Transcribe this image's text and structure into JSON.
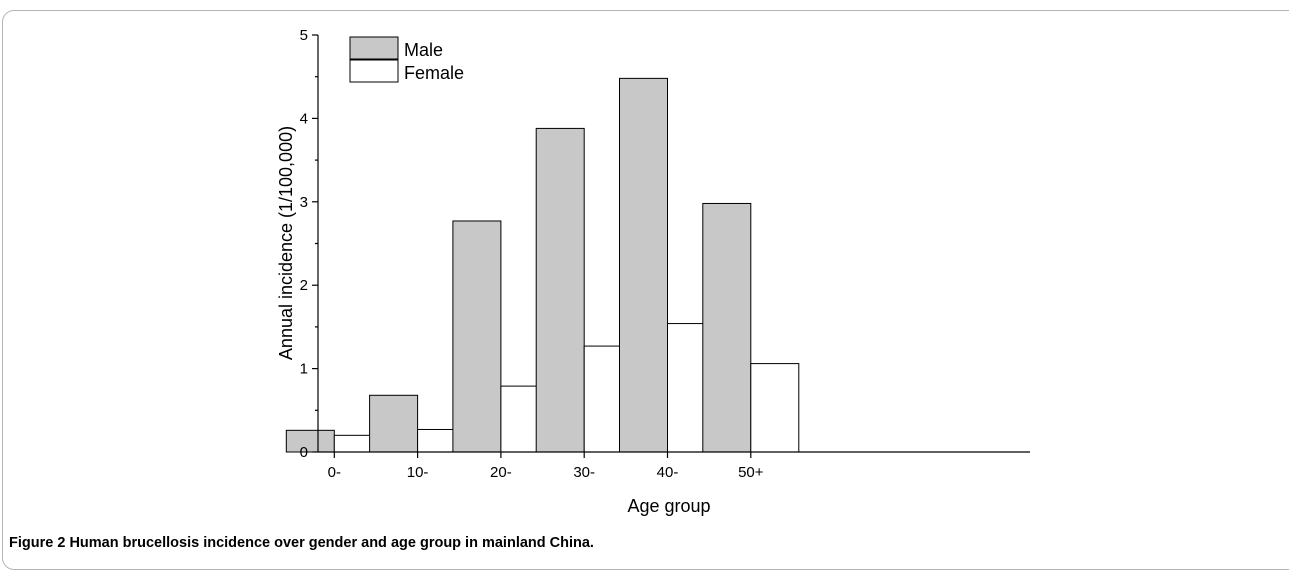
{
  "caption": {
    "label": "Figure 2",
    "text": "Human brucellosis incidence over gender and age group in mainland China."
  },
  "chart_data": {
    "type": "bar",
    "title": "",
    "xlabel": "Age group",
    "ylabel": "Annual incidence (1/100,000)",
    "categories": [
      "0-",
      "10-",
      "20-",
      "30-",
      "40-",
      "50+"
    ],
    "ylim": [
      0,
      5
    ],
    "yticks": [
      0,
      1,
      2,
      3,
      4,
      5
    ],
    "grid": false,
    "legend_position": "top-left",
    "series": [
      {
        "name": "Male",
        "values": [
          0.26,
          0.68,
          2.77,
          3.88,
          4.48,
          2.98
        ],
        "color": "#c8c8c8"
      },
      {
        "name": "Female",
        "values": [
          0.2,
          0.27,
          0.79,
          1.27,
          1.54,
          1.06
        ],
        "color": "#ffffff"
      }
    ]
  }
}
